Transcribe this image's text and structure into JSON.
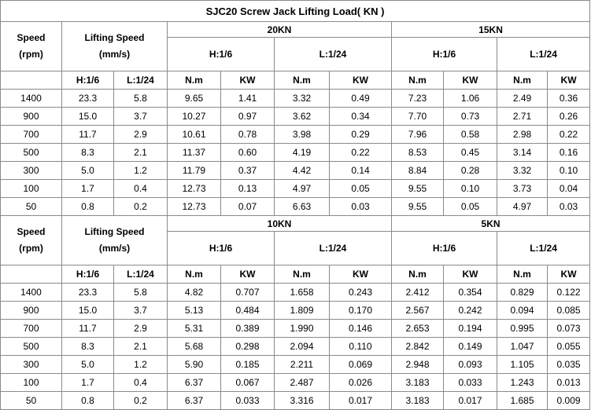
{
  "title": "SJC20 Screw Jack Lifting Load( KN )",
  "blocks": [
    {
      "speed_label": [
        "Speed",
        "(rpm)"
      ],
      "lifting_label": [
        "Lifting Speed",
        "(mm/s)"
      ],
      "loads": [
        "20KN",
        "15KN"
      ],
      "groups": [
        "H:1/6",
        "L:1/24",
        "H:1/6",
        "L:1/24"
      ],
      "subheaders": [
        "H:1/6",
        "L:1/24",
        "N.m",
        "KW",
        "N.m",
        "KW",
        "N.m",
        "KW",
        "N.m",
        "KW"
      ],
      "rows": [
        [
          "1400",
          "23.3",
          "5.8",
          "9.65",
          "1.41",
          "3.32",
          "0.49",
          "7.23",
          "1.06",
          "2.49",
          "0.36"
        ],
        [
          "900",
          "15.0",
          "3.7",
          "10.27",
          "0.97",
          "3.62",
          "0.34",
          "7.70",
          "0.73",
          "2.71",
          "0.26"
        ],
        [
          "700",
          "11.7",
          "2.9",
          "10.61",
          "0.78",
          "3.98",
          "0.29",
          "7.96",
          "0.58",
          "2.98",
          "0.22"
        ],
        [
          "500",
          "8.3",
          "2.1",
          "11.37",
          "0.60",
          "4.19",
          "0.22",
          "8.53",
          "0.45",
          "3.14",
          "0.16"
        ],
        [
          "300",
          "5.0",
          "1.2",
          "11.79",
          "0.37",
          "4.42",
          "0.14",
          "8.84",
          "0.28",
          "3.32",
          "0.10"
        ],
        [
          "100",
          "1.7",
          "0.4",
          "12.73",
          "0.13",
          "4.97",
          "0.05",
          "9.55",
          "0.10",
          "3.73",
          "0.04"
        ],
        [
          "50",
          "0.8",
          "0.2",
          "12.73",
          "0.07",
          "6.63",
          "0.03",
          "9.55",
          "0.05",
          "4.97",
          "0.03"
        ]
      ]
    },
    {
      "speed_label": [
        "Speed",
        "(rpm)"
      ],
      "lifting_label": [
        "Lifting Speed",
        "(mm/s)"
      ],
      "loads": [
        "10KN",
        "5KN"
      ],
      "groups": [
        "H:1/6",
        "L:1/24",
        "H:1/6",
        "L:1/24"
      ],
      "subheaders": [
        "H:1/6",
        "L:1/24",
        "N.m",
        "KW",
        "N.m",
        "KW",
        "N.m",
        "KW",
        "N.m",
        "KW"
      ],
      "rows": [
        [
          "1400",
          "23.3",
          "5.8",
          "4.82",
          "0.707",
          "1.658",
          "0.243",
          "2.412",
          "0.354",
          "0.829",
          "0.122"
        ],
        [
          "900",
          "15.0",
          "3.7",
          "5.13",
          "0.484",
          "1.809",
          "0.170",
          "2.567",
          "0.242",
          "0.094",
          "0.085"
        ],
        [
          "700",
          "11.7",
          "2.9",
          "5.31",
          "0.389",
          "1.990",
          "0.146",
          "2.653",
          "0.194",
          "0.995",
          "0.073"
        ],
        [
          "500",
          "8.3",
          "2.1",
          "5.68",
          "0.298",
          "2.094",
          "0.110",
          "2.842",
          "0.149",
          "1.047",
          "0.055"
        ],
        [
          "300",
          "5.0",
          "1.2",
          "5.90",
          "0.185",
          "2.211",
          "0.069",
          "2.948",
          "0.093",
          "1.105",
          "0.035"
        ],
        [
          "100",
          "1.7",
          "0.4",
          "6.37",
          "0.067",
          "2.487",
          "0.026",
          "3.183",
          "0.033",
          "1.243",
          "0.013"
        ],
        [
          "50",
          "0.8",
          "0.2",
          "6.37",
          "0.033",
          "3.316",
          "0.017",
          "3.183",
          "0.017",
          "1.685",
          "0.009"
        ]
      ]
    }
  ]
}
